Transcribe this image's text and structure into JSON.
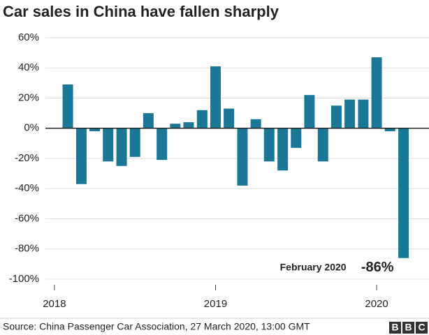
{
  "chart_data": {
    "type": "bar",
    "title": "Car sales in China have fallen sharply",
    "x": [
      2018.083,
      2018.167,
      2018.25,
      2018.333,
      2018.417,
      2018.5,
      2018.583,
      2018.667,
      2018.75,
      2018.833,
      2018.917,
      2019.0,
      2019.083,
      2019.167,
      2019.25,
      2019.333,
      2019.417,
      2019.5,
      2019.583,
      2019.667,
      2019.75,
      2019.833,
      2019.917,
      2020.0,
      2020.083,
      2020.167
    ],
    "values": [
      29,
      -37,
      -2,
      -22,
      -25,
      -19,
      10,
      -21,
      3,
      4,
      12,
      41,
      13,
      -38,
      6,
      -22,
      -28,
      -13,
      22,
      -22,
      15,
      19,
      19,
      47,
      -2,
      -86
    ],
    "value_labels": [
      null,
      null,
      null,
      null,
      null,
      null,
      null,
      null,
      null,
      null,
      null,
      null,
      null,
      null,
      null,
      null,
      null,
      null,
      null,
      null,
      null,
      null,
      null,
      null,
      null,
      "-86%"
    ],
    "annotation": "February 2020",
    "color": "#1a7896",
    "xlim": [
      2017.944,
      2020.325
    ],
    "xticks": [
      2018,
      2019,
      2020
    ],
    "ylim": [
      -100,
      60
    ],
    "yticks": [
      {
        "value": 60,
        "label": "60%"
      },
      {
        "value": 40,
        "label": "40%"
      },
      {
        "value": 20,
        "label": "20%"
      },
      {
        "value": 0,
        "label": "0%"
      },
      {
        "value": -20,
        "label": "-20%"
      },
      {
        "value": -40,
        "label": "-40%"
      },
      {
        "value": -60,
        "label": "-60%"
      },
      {
        "value": -80,
        "label": "-80%"
      },
      {
        "value": -100,
        "label": "-100%"
      }
    ],
    "grid": true,
    "source": "Source: China Passenger Car Association, 27 March 2020, 13:00 GMT",
    "logo": [
      "B",
      "B",
      "C"
    ]
  }
}
